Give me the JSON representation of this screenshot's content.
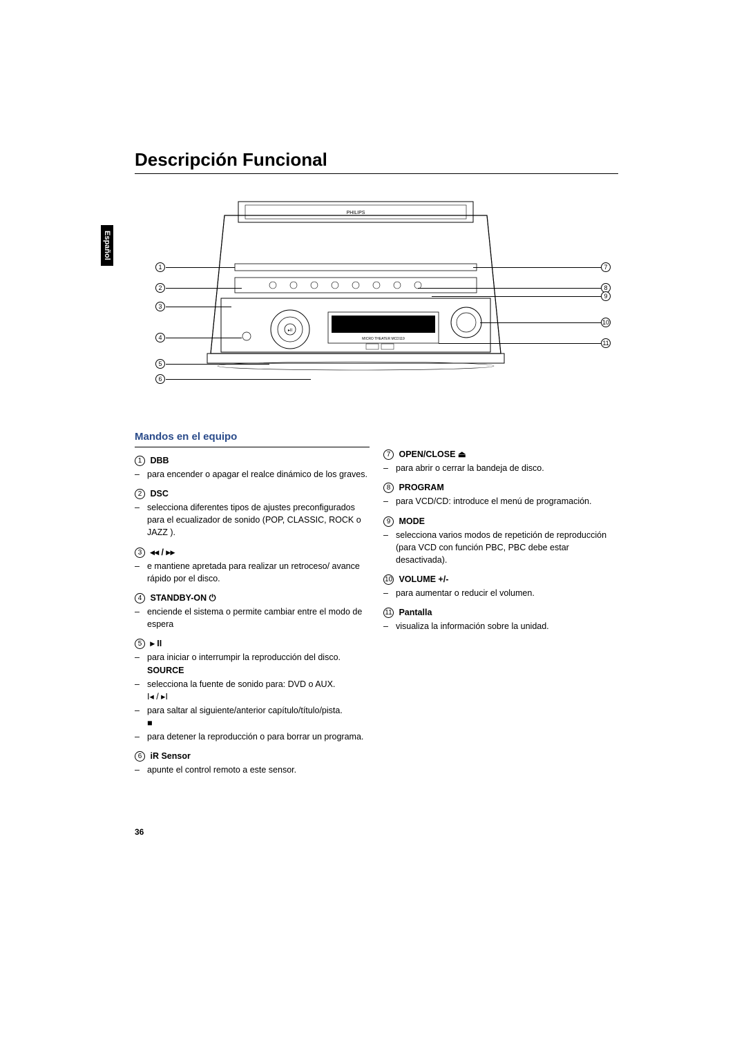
{
  "title": "Descripción Funcional",
  "lang_tab": "Español",
  "page_number": "36",
  "section_title": "Mandos en el equipo",
  "colors": {
    "accent": "#2a4b8a",
    "text": "#000000",
    "background": "#ffffff"
  },
  "diagram": {
    "brand": "PHILIPS",
    "left_callouts": [
      "1",
      "2",
      "3",
      "4",
      "5",
      "6"
    ],
    "right_callouts": [
      "7",
      "8",
      "9",
      "10",
      "11"
    ]
  },
  "left_items": [
    {
      "num": "1",
      "head": "DBB",
      "bullets": [
        {
          "text": "para encender o apagar el realce dinámico de los graves."
        }
      ]
    },
    {
      "num": "2",
      "head": "DSC",
      "bullets": [
        {
          "text": "selecciona diferentes tipos de ajustes preconfigurados para el ecualizador de sonido (POP, CLASSIC, ROCK o JAZZ )."
        }
      ]
    },
    {
      "num": "3",
      "head": "◂◂ / ▸▸",
      "bullets": [
        {
          "text": "e mantiene apretada para realizar un retroceso/ avance rápido por el disco."
        }
      ]
    },
    {
      "num": "4",
      "head": "STANDBY-ON ⏻",
      "bullets": [
        {
          "text": "enciende el sistema o permite cambiar entre el modo de espera"
        }
      ]
    },
    {
      "num": "5",
      "head": "▸ II",
      "bullets": [
        {
          "text": "para iniciar o interrumpir la reproducción del disco."
        },
        {
          "bold": "SOURCE"
        },
        {
          "text": "selecciona la fuente de sonido para: DVD o AUX."
        },
        {
          "sym": "I◂ / ▸I"
        },
        {
          "text": "para saltar al siguiente/anterior  capítulo/título/pista."
        },
        {
          "sym": "■"
        },
        {
          "text": "para detener la reproducción o para borrar un programa."
        }
      ]
    },
    {
      "num": "6",
      "head": "iR Sensor",
      "bullets": [
        {
          "text": "apunte el control remoto a este sensor."
        }
      ]
    }
  ],
  "right_items": [
    {
      "num": "7",
      "head": "OPEN/CLOSE ⏏",
      "bullets": [
        {
          "text": "para abrir o cerrar la bandeja de disco."
        }
      ]
    },
    {
      "num": "8",
      "head": "PROGRAM",
      "bullets": [
        {
          "text_prefix": "para VCD/CD:",
          "text": " introduce el menú de programación."
        }
      ]
    },
    {
      "num": "9",
      "head": "MODE",
      "bullets": [
        {
          "text": "selecciona varios modos de repetición de reproducción (para VCD con función PBC, PBC debe estar desactivada)."
        }
      ]
    },
    {
      "num": "10",
      "head": "VOLUME +/-",
      "bullets": [
        {
          "text": "para aumentar o reducir el volumen."
        }
      ]
    },
    {
      "num": "11",
      "head": "Pantalla",
      "bullets": [
        {
          "text": "visualiza la información sobre la unidad."
        }
      ]
    }
  ]
}
